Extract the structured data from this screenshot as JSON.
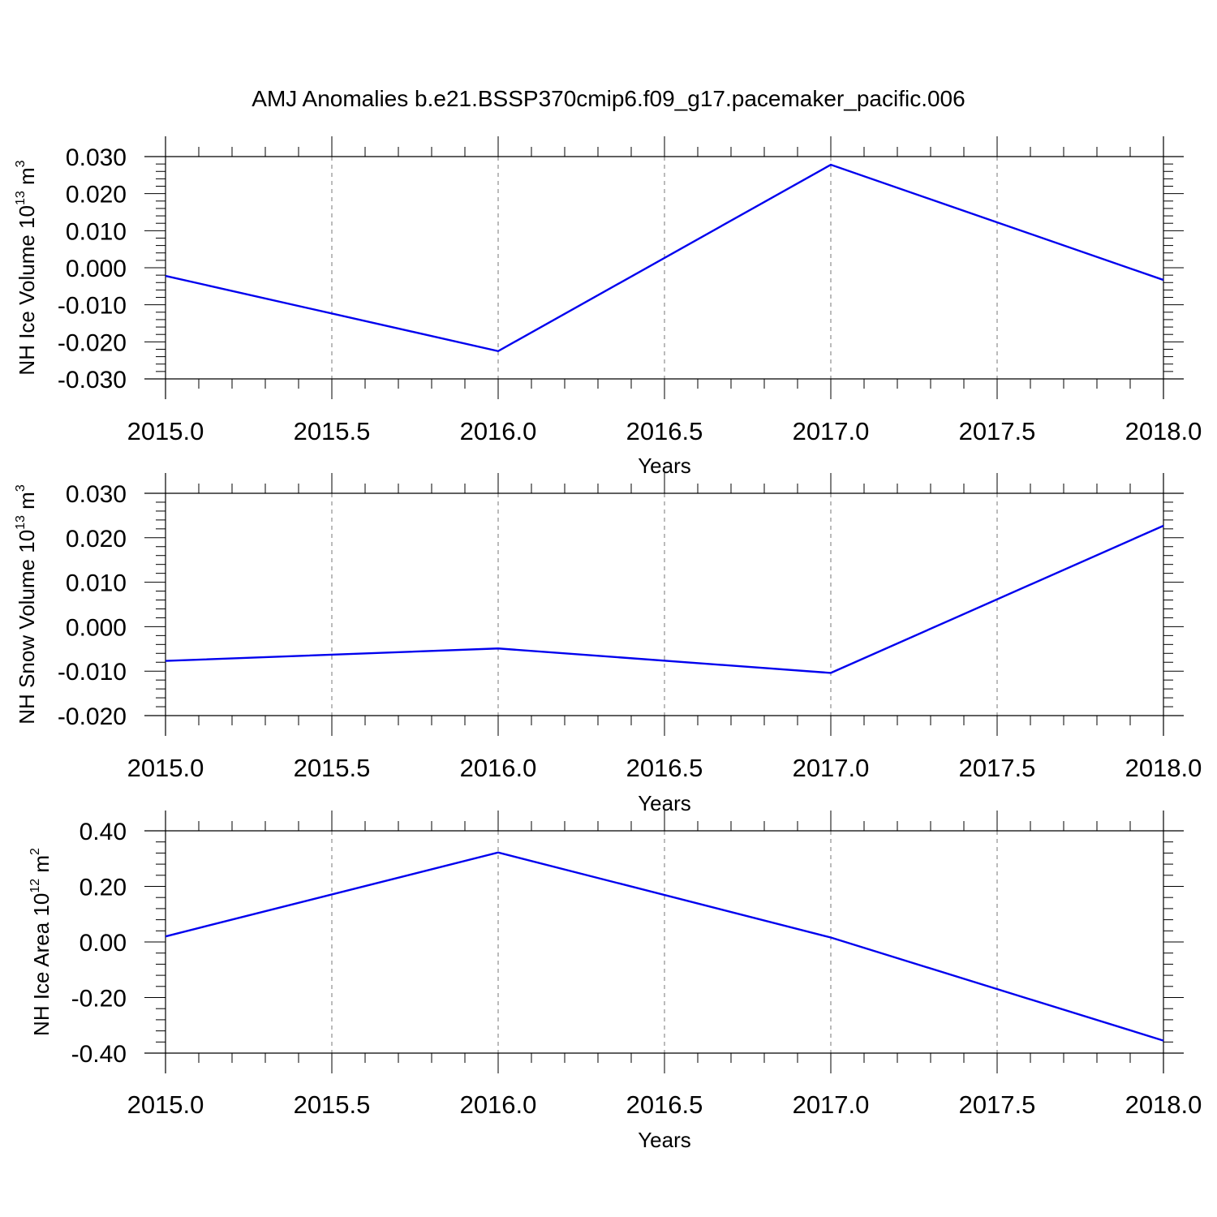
{
  "title": "AMJ Anomalies b.e21.BSSP370cmip6.f09_g17.pacemaker_pacific.006",
  "chart_data": [
    {
      "type": "line",
      "ylabel": "NH Ice Volume 10",
      "ylabel_exp": "13",
      "ylabel_unit": " m",
      "ylabel_unit_exp": "3",
      "xlabel": "Years",
      "xlim": [
        2015.0,
        2018.0
      ],
      "ylim": [
        -0.03,
        0.03
      ],
      "x_ticks": [
        "2015.0",
        "2015.5",
        "2016.0",
        "2016.5",
        "2017.0",
        "2017.5",
        "2018.0"
      ],
      "y_ticks": [
        "0.030",
        "0.020",
        "0.010",
        "0.000",
        "-0.010",
        "-0.020",
        "-0.030"
      ],
      "grid": "vertical dashed",
      "line_color": "#0000ee",
      "x": [
        2015,
        2016,
        2017,
        2018
      ],
      "y": [
        -0.0022,
        -0.0225,
        0.0278,
        -0.0033
      ]
    },
    {
      "type": "line",
      "ylabel": "NH Snow Volume 10",
      "ylabel_exp": "13",
      "ylabel_unit": " m",
      "ylabel_unit_exp": "3",
      "xlabel": "Years",
      "xlim": [
        2015.0,
        2018.0
      ],
      "ylim": [
        -0.02,
        0.03
      ],
      "x_ticks": [
        "2015.0",
        "2015.5",
        "2016.0",
        "2016.5",
        "2017.0",
        "2017.5",
        "2018.0"
      ],
      "y_ticks": [
        "0.030",
        "0.020",
        "0.010",
        "0.000",
        "-0.010",
        "-0.020"
      ],
      "grid": "vertical dashed",
      "line_color": "#0000ee",
      "x": [
        2015,
        2016,
        2017,
        2018
      ],
      "y": [
        -0.0077,
        -0.0049,
        -0.0104,
        0.0227
      ]
    },
    {
      "type": "line",
      "ylabel": "NH Ice Area 10",
      "ylabel_exp": "12",
      "ylabel_unit": " m",
      "ylabel_unit_exp": "2",
      "xlabel": "Years",
      "xlim": [
        2015.0,
        2018.0
      ],
      "ylim": [
        -0.4,
        0.4
      ],
      "x_ticks": [
        "2015.0",
        "2015.5",
        "2016.0",
        "2016.5",
        "2017.0",
        "2017.5",
        "2018.0"
      ],
      "y_ticks": [
        "0.40",
        "0.20",
        "0.00",
        "-0.20",
        "-0.40"
      ],
      "grid": "vertical dashed",
      "line_color": "#0000ee",
      "x": [
        2015,
        2016,
        2017,
        2018
      ],
      "y": [
        0.02,
        0.322,
        0.016,
        -0.355
      ]
    }
  ]
}
